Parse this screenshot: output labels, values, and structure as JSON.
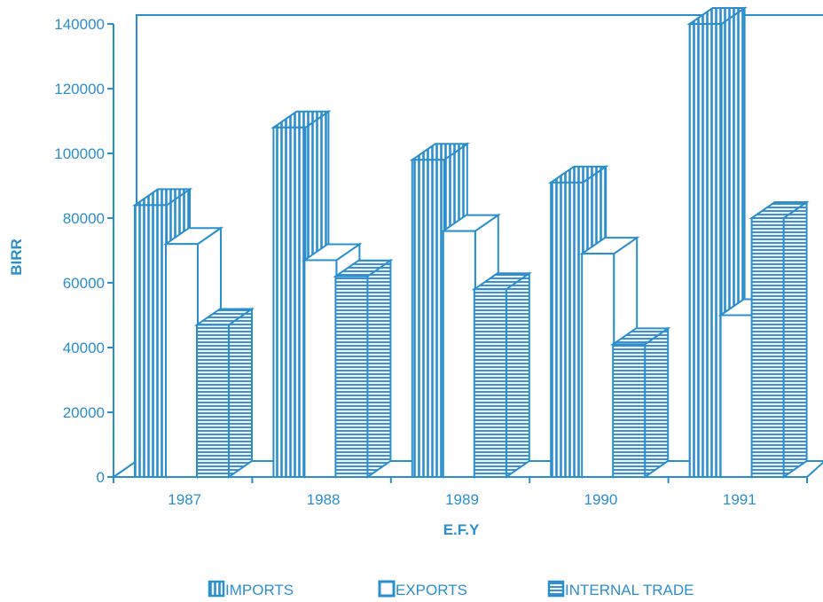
{
  "chart_data": {
    "type": "bar",
    "categories": [
      "1987",
      "1988",
      "1989",
      "1990",
      "1991"
    ],
    "series": [
      {
        "name": "IMPORTS",
        "values": [
          84000,
          108000,
          98000,
          91000,
          140000
        ]
      },
      {
        "name": "EXPORTS",
        "values": [
          72000,
          67000,
          76000,
          69000,
          50000
        ]
      },
      {
        "name": "INTERNAL TRADE",
        "values": [
          47000,
          62000,
          58000,
          41000,
          80000
        ]
      }
    ],
    "title": "",
    "xlabel": "E.F.Y",
    "ylabel": "BIRR",
    "ylim": [
      0,
      140000
    ],
    "yticks": [
      0,
      20000,
      40000,
      60000,
      80000,
      100000,
      120000,
      140000
    ],
    "grid": false,
    "legend_position": "bottom",
    "style": "3d-bar"
  },
  "colors": {
    "accent": "#2b8fce",
    "fill_light": "#ffffff"
  }
}
